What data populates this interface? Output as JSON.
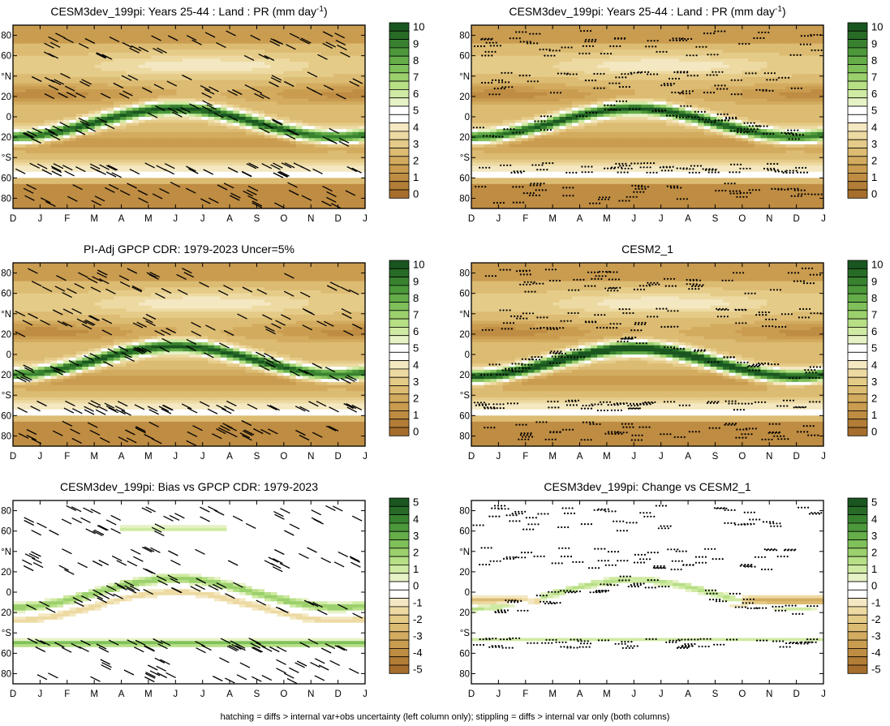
{
  "footer": "hatching = diffs > internal var+obs uncertainty (left column only); stippling = diffs > internal var only (both columns)",
  "colors": {
    "precip_scale": [
      "#a66e2c",
      "#b27d36",
      "#be8c42",
      "#c99c50",
      "#d3ab5f",
      "#dcbb72",
      "#e5cb88",
      "#eddaa2",
      "#f4e8c2",
      "#ffffff",
      "#ffffff",
      "#e6f2c6",
      "#cfeaa2",
      "#b6df86",
      "#9bd06c",
      "#7fc05a",
      "#64ad49",
      "#4c983b",
      "#38822f",
      "#276b26",
      "#1a5620"
    ],
    "diff_scale": [
      "#a66e2c",
      "#b27d36",
      "#be8c42",
      "#c99c50",
      "#d3ab5f",
      "#dcbb72",
      "#e5cb88",
      "#eddaa2",
      "#f4e8c2",
      "#ffffff",
      "#ffffff",
      "#e6f2c6",
      "#cfeaa2",
      "#b6df86",
      "#9bd06c",
      "#7fc05a",
      "#64ad49",
      "#4c983b",
      "#38822f",
      "#276b26",
      "#1a5620"
    ]
  },
  "chart_data": [
    {
      "type": "heatmap",
      "title": "CESM3dev_199pi: Years 25-44 : Land : PR (mm day",
      "title_sup": "-1",
      "title_end": ")",
      "x_ticks": [
        "D",
        "J",
        "F",
        "M",
        "A",
        "M",
        "J",
        "J",
        "A",
        "S",
        "O",
        "N",
        "D",
        "J"
      ],
      "y_ticks": [
        "80",
        "60",
        "°N",
        "20",
        "0",
        "20",
        "°S",
        "60",
        "80"
      ],
      "y_range_deg": [
        -90,
        90
      ],
      "colorbar_labels": [
        "10",
        "9",
        "8",
        "7",
        "6",
        "5",
        "4",
        "3",
        "2",
        "1",
        "0"
      ],
      "colorbar_range": [
        0,
        10.5
      ],
      "field": "precip",
      "overlay": "hatch",
      "overlay_regions": [
        "band_60_85N",
        "band_20_45N",
        "itcz",
        "band_50S",
        "antarctic"
      ]
    },
    {
      "type": "heatmap",
      "title": "CESM3dev_199pi: Years 25-44 : Land : PR (mm day",
      "title_sup": "-1",
      "title_end": ")",
      "x_ticks": [
        "D",
        "J",
        "F",
        "M",
        "A",
        "M",
        "J",
        "J",
        "A",
        "S",
        "O",
        "N",
        "D",
        "J"
      ],
      "y_ticks": [
        "80",
        "60",
        "°N",
        "20",
        "0",
        "20",
        "°S",
        "60",
        "80"
      ],
      "y_range_deg": [
        -90,
        90
      ],
      "colorbar_labels": [
        "10",
        "9",
        "8",
        "7",
        "6",
        "5",
        "4",
        "3",
        "2",
        "1",
        "0"
      ],
      "colorbar_range": [
        0,
        10.5
      ],
      "field": "precip",
      "overlay": "stipple",
      "overlay_regions": [
        "band_60_85N",
        "band_20_45N",
        "itcz",
        "band_50S",
        "antarctic"
      ]
    },
    {
      "type": "heatmap",
      "title": "PI-Adj GPCP CDR: 1979-2023 Uncer=5%",
      "x_ticks": [
        "D",
        "J",
        "F",
        "M",
        "A",
        "M",
        "J",
        "J",
        "A",
        "S",
        "O",
        "N",
        "D",
        "J"
      ],
      "y_ticks": [
        "80",
        "60",
        "°N",
        "20",
        "0",
        "20",
        "°S",
        "60",
        "80"
      ],
      "y_range_deg": [
        -90,
        90
      ],
      "colorbar_labels": [
        "10",
        "9",
        "8",
        "7",
        "6",
        "5",
        "4",
        "3",
        "2",
        "1",
        "0"
      ],
      "colorbar_range": [
        0,
        10.5
      ],
      "field": "precip",
      "overlay": "hatch",
      "overlay_regions": [
        "band_60_85N",
        "band_20_45N",
        "itcz",
        "band_50S",
        "antarctic"
      ]
    },
    {
      "type": "heatmap",
      "title": "CESM2_1",
      "x_ticks": [
        "D",
        "J",
        "F",
        "M",
        "A",
        "M",
        "J",
        "J",
        "A",
        "S",
        "O",
        "N",
        "D",
        "J"
      ],
      "y_ticks": [
        "80",
        "60",
        "°N",
        "20",
        "0",
        "20",
        "°S",
        "60",
        "80"
      ],
      "y_range_deg": [
        -90,
        90
      ],
      "colorbar_labels": [
        "10",
        "9",
        "8",
        "7",
        "6",
        "5",
        "4",
        "3",
        "2",
        "1",
        "0"
      ],
      "colorbar_range": [
        0,
        10.5
      ],
      "field": "precip",
      "overlay": "stipple",
      "overlay_regions": [
        "band_60_85N",
        "band_20_45N",
        "itcz",
        "band_50S",
        "antarctic"
      ]
    },
    {
      "type": "heatmap",
      "title": "CESM3dev_199pi: Bias vs GPCP CDR: 1979-2023",
      "x_ticks": [
        "D",
        "J",
        "F",
        "M",
        "A",
        "M",
        "J",
        "J",
        "A",
        "S",
        "O",
        "N",
        "D",
        "J"
      ],
      "y_ticks": [
        "80",
        "60",
        "°N",
        "20",
        "0",
        "20",
        "°S",
        "60",
        "80"
      ],
      "y_range_deg": [
        -90,
        90
      ],
      "colorbar_labels": [
        "5",
        "4",
        "3",
        "2",
        "1",
        "0",
        "-1",
        "-2",
        "-3",
        "-4",
        "-5"
      ],
      "colorbar_range": [
        -5.25,
        5.25
      ],
      "field": "diff",
      "overlay": "hatch",
      "overlay_regions": [
        "band_60_85N",
        "band_20_45N",
        "itcz",
        "band_50S",
        "antarctic"
      ]
    },
    {
      "type": "heatmap",
      "title": "CESM3dev_199pi: Change vs CESM2_1",
      "x_ticks": [
        "D",
        "J",
        "F",
        "M",
        "A",
        "M",
        "J",
        "J",
        "A",
        "S",
        "O",
        "N",
        "D",
        "J"
      ],
      "y_ticks": [
        "80",
        "60",
        "°N",
        "20",
        "0",
        "20",
        "°S",
        "60",
        "80"
      ],
      "y_range_deg": [
        -90,
        90
      ],
      "colorbar_labels": [
        "5",
        "4",
        "3",
        "2",
        "1",
        "0",
        "-1",
        "-2",
        "-3",
        "-4",
        "-5"
      ],
      "colorbar_range": [
        -5.25,
        5.25
      ],
      "field": "diff",
      "overlay": "stipple",
      "overlay_regions": [
        "band_60_85N",
        "band_20_45N",
        "itcz",
        "band_50S"
      ]
    }
  ]
}
